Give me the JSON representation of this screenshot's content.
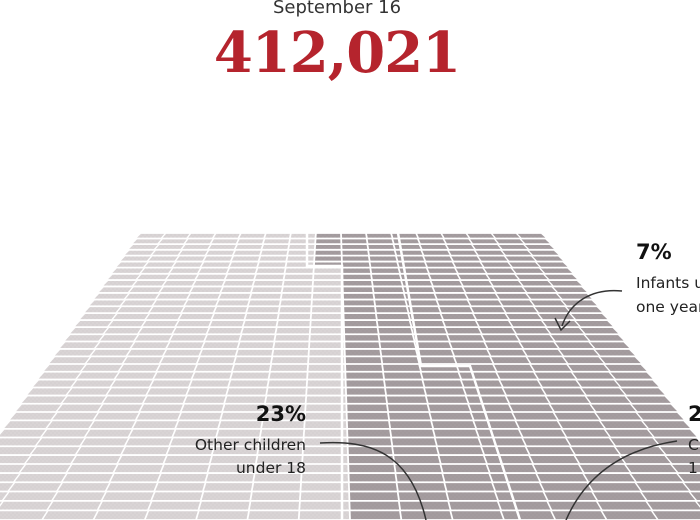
{
  "header": {
    "date": "September 16",
    "total": "412,021",
    "total_color": "#b5242d"
  },
  "chart_data": {
    "type": "waffle",
    "total_label": "412,021",
    "segments": [
      {
        "percent": "23%",
        "label_lines": [
          "Other children",
          "under 18"
        ],
        "color": "#d9d4d5"
      },
      {
        "percent": "2",
        "label_lines": [
          "C",
          "1"
        ],
        "color": "#a49c9f"
      },
      {
        "percent": "7%",
        "label_lines": [
          "Infants u",
          "one year"
        ],
        "color": "#a49c9f"
      }
    ]
  },
  "annotations": {
    "infants": {
      "pct": "7%",
      "line1": "Infants u",
      "line2": "one year"
    },
    "other_children": {
      "pct": "23%",
      "line1": "Other children",
      "line2": "under 18"
    },
    "cropped_right": {
      "pct": "2",
      "line1": "C",
      "line2": "1"
    }
  }
}
